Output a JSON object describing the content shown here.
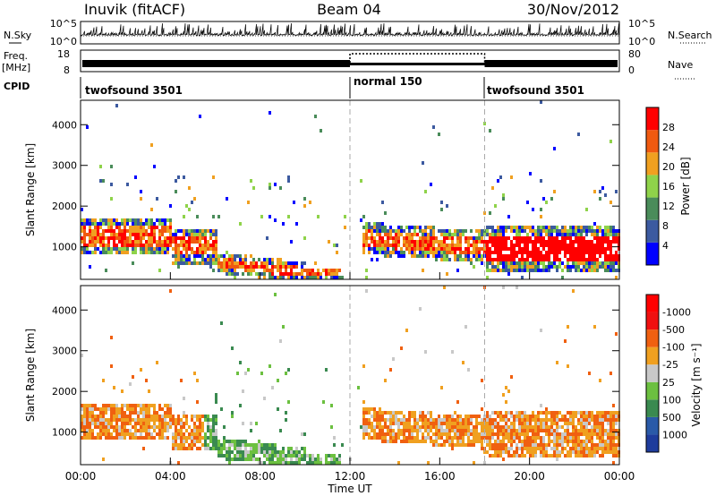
{
  "header": {
    "station": "Inuvik (fitACF)",
    "beam": "Beam 04",
    "date": "30/Nov/2012"
  },
  "nsky_panel": {
    "left_label": "N.Sky",
    "right_label": "N.Search",
    "ticks_left": [
      "10^5",
      "10^0"
    ],
    "ticks_right": [
      "10^5",
      "10^0"
    ]
  },
  "freq_panel": {
    "left_label_1": "Freq.",
    "left_label_2": "[MHz]",
    "right_label": "Nave",
    "ticks_left": [
      "18",
      "8"
    ],
    "ticks_right": [
      "80",
      "0"
    ]
  },
  "cpid": {
    "label": "CPID",
    "segments": [
      {
        "name": "twofsound 3501",
        "start_hour": 0,
        "end_hour": 12
      },
      {
        "name": "normal 150",
        "start_hour": 12,
        "end_hour": 18
      },
      {
        "name": "twofsound 3501",
        "start_hour": 18,
        "end_hour": 24
      }
    ]
  },
  "chart_data": [
    {
      "type": "heatmap",
      "title": "",
      "xlabel": "Time UT",
      "ylabel": "Slant Range [km]",
      "x_ticks": [
        "00:00",
        "04:00",
        "08:00",
        "12:00",
        "16:00",
        "20:00",
        "00:00"
      ],
      "y_ticks": [
        "1000",
        "2000",
        "3000",
        "4000"
      ],
      "xlim_hours": [
        0,
        24
      ],
      "ylim_km": [
        200,
        4600
      ],
      "colorbar": {
        "label": "Power [dB]",
        "ticks": [
          "4",
          "8",
          "12",
          "16",
          "20",
          "24",
          "28"
        ],
        "colors": [
          "#0000ff",
          "#3c5aa0",
          "#4a8c5a",
          "#8fd34a",
          "#f0a020",
          "#f05a10",
          "#ff0000"
        ]
      }
    },
    {
      "type": "heatmap",
      "title": "",
      "xlabel": "Time UT",
      "ylabel": "Slant Range [km]",
      "x_ticks": [
        "00:00",
        "04:00",
        "08:00",
        "12:00",
        "16:00",
        "20:00",
        "00:00"
      ],
      "y_ticks": [
        "1000",
        "2000",
        "3000",
        "4000"
      ],
      "xlim_hours": [
        0,
        24
      ],
      "ylim_km": [
        200,
        4600
      ],
      "colorbar": {
        "label": "Velocity [m s⁻¹]",
        "ticks": [
          "1000",
          "500",
          "100",
          "25",
          "-25",
          "-100",
          "-500",
          "-1000"
        ],
        "colors": [
          "#1e3c9c",
          "#2a5aa8",
          "#3a8a50",
          "#6cc040",
          "#c8c8c8",
          "#f0a020",
          "#f06010",
          "#f01010",
          "#ff0000"
        ]
      }
    }
  ]
}
